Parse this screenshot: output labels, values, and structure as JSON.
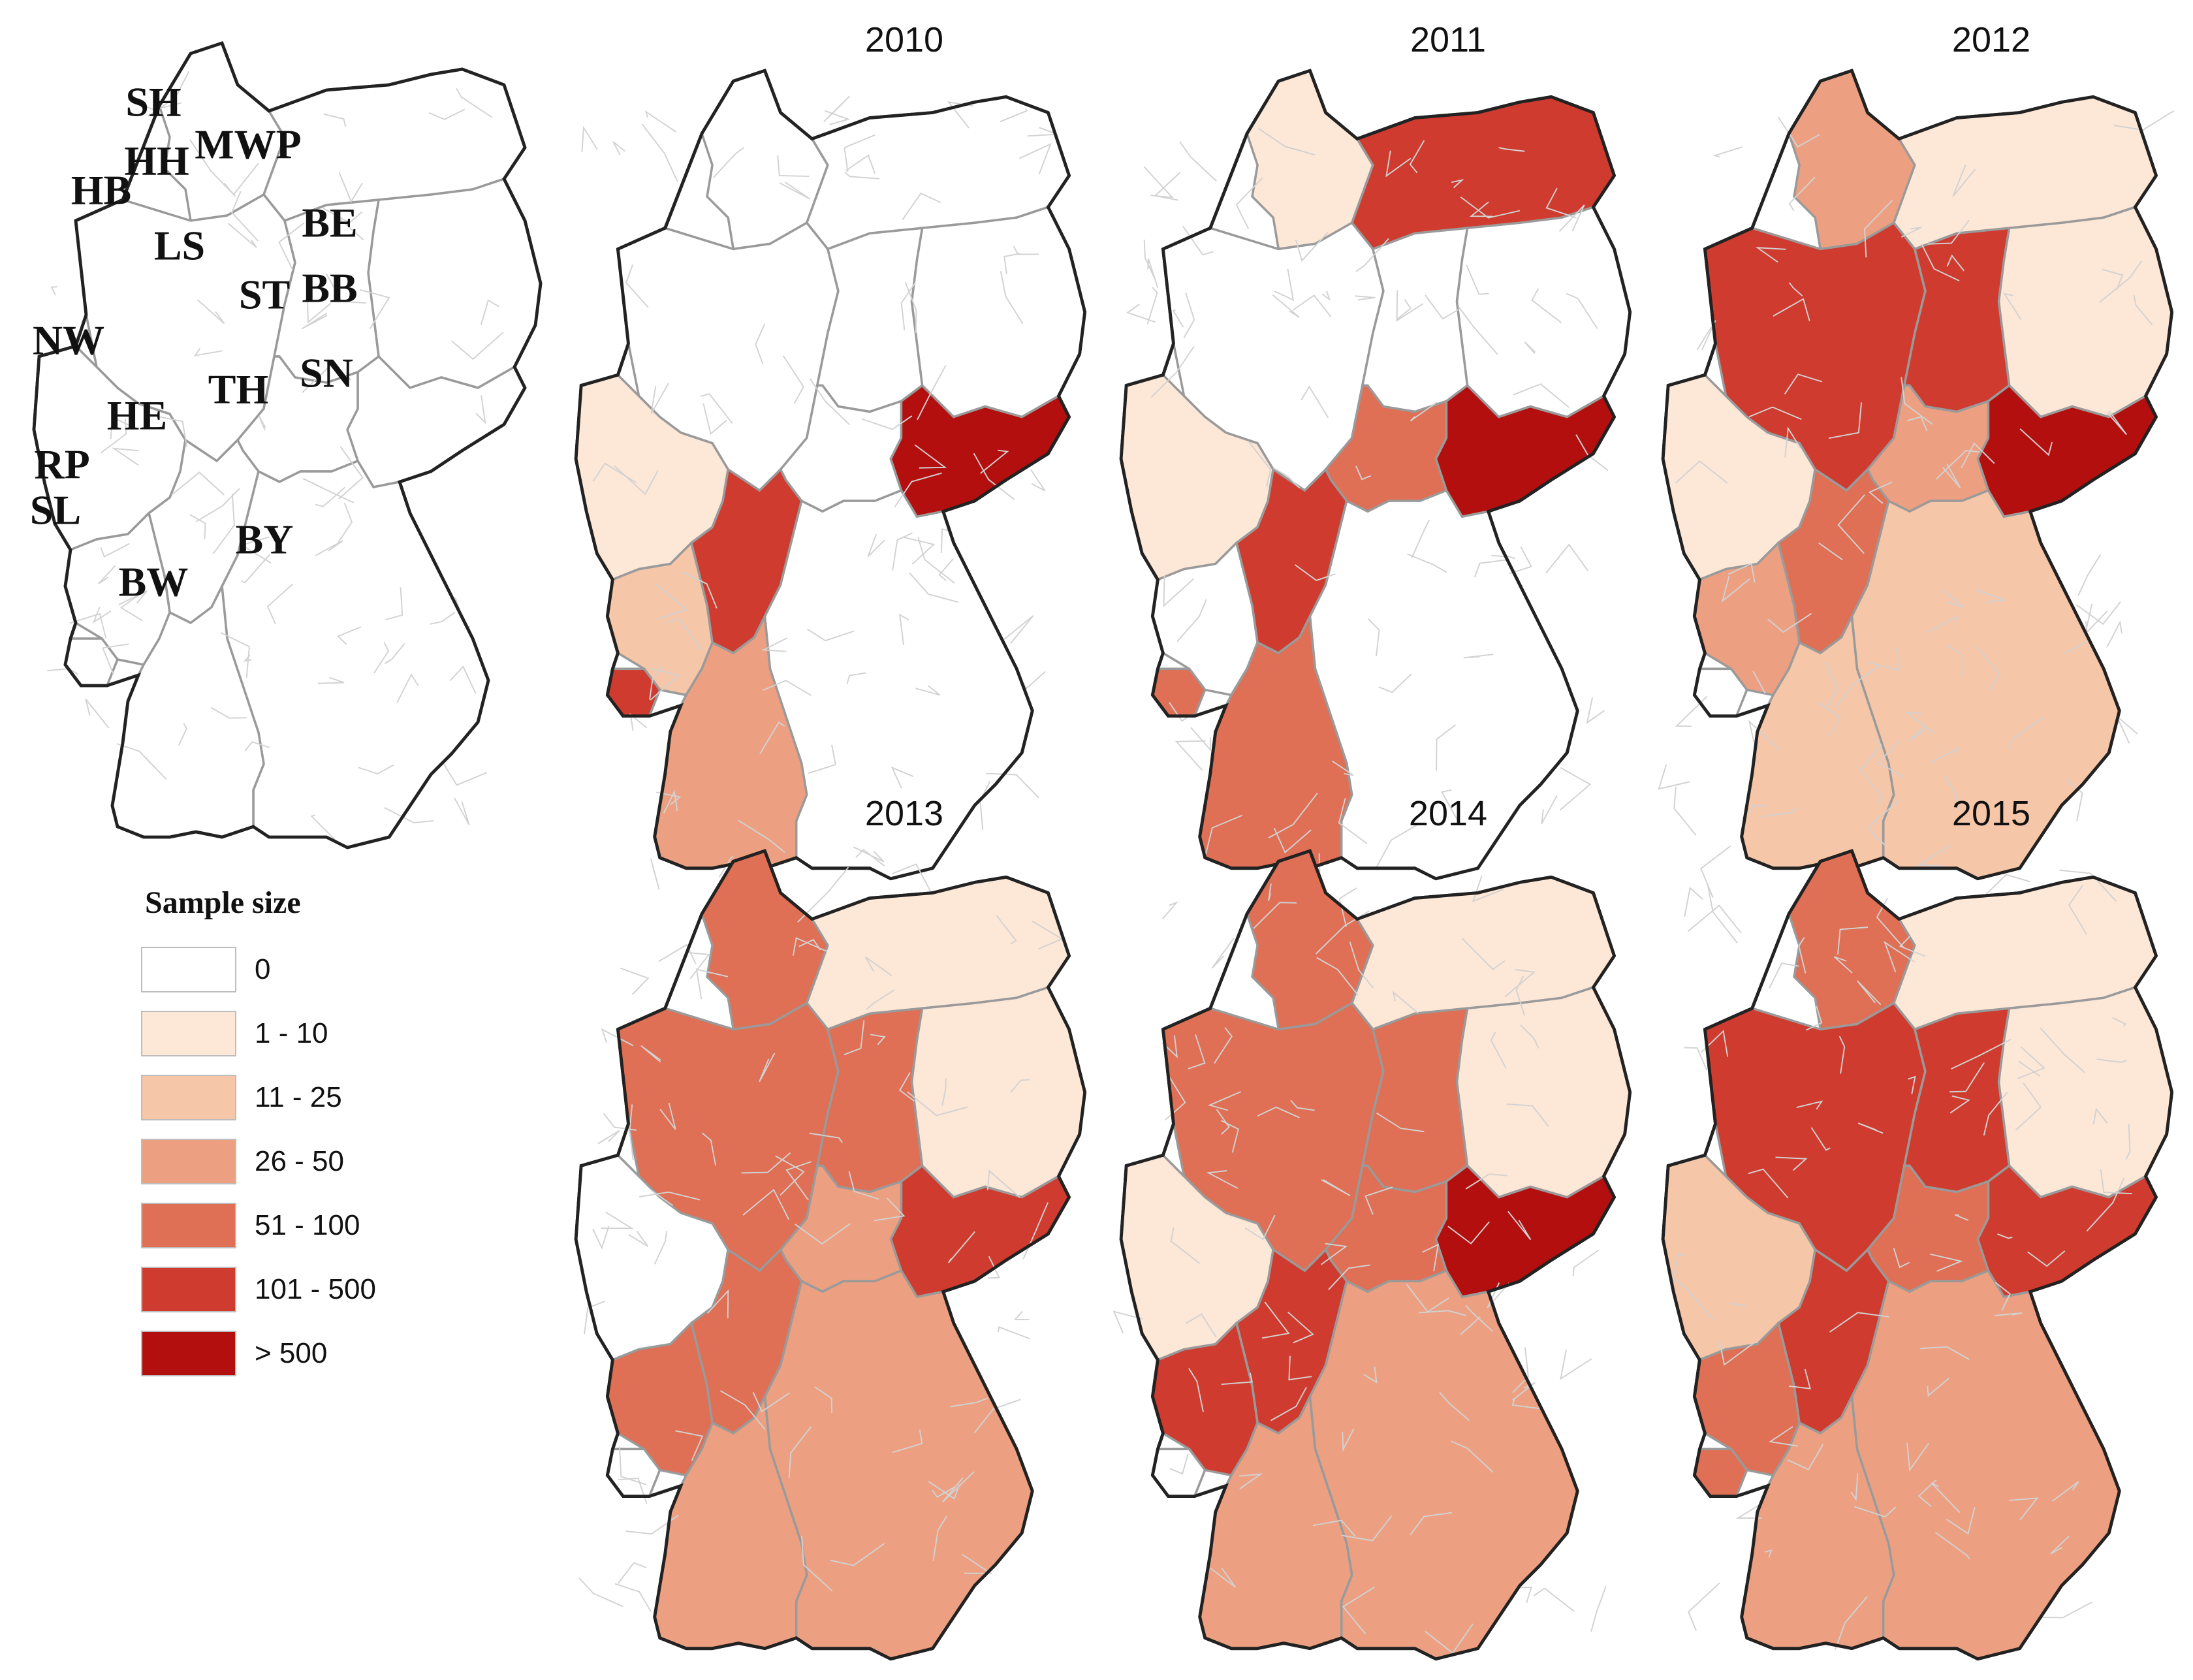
{
  "reference_map": {
    "states": [
      {
        "code": "SH"
      },
      {
        "code": "HH"
      },
      {
        "code": "MWP"
      },
      {
        "code": "HB"
      },
      {
        "code": "LS"
      },
      {
        "code": "BE"
      },
      {
        "code": "ST"
      },
      {
        "code": "BB"
      },
      {
        "code": "NW"
      },
      {
        "code": "SN"
      },
      {
        "code": "TH"
      },
      {
        "code": "HE"
      },
      {
        "code": "RP"
      },
      {
        "code": "SL"
      },
      {
        "code": "BY"
      },
      {
        "code": "BW"
      }
    ]
  },
  "maps": [
    {
      "year": "2010",
      "fill": {
        "SN": 6,
        "HE": 5,
        "RP": 2,
        "NW": 1,
        "SL": 5,
        "BW": 3
      }
    },
    {
      "year": "2011",
      "fill": {
        "MWP": 5,
        "SN": 6,
        "HE": 5,
        "TH": 4,
        "NW": 1,
        "SL": 4,
        "SH": 1,
        "BW": 4
      }
    },
    {
      "year": "2012",
      "fill": {
        "SH": 3,
        "LS": 5,
        "ST": 5,
        "SN": 6,
        "HE": 4,
        "TH": 3,
        "BY": 2,
        "BW": 2,
        "BB": 1,
        "NW": 1,
        "RP": 3,
        "MWP": 1
      }
    },
    {
      "year": "2013",
      "fill": {
        "SH": 4,
        "LS": 4,
        "ST": 4,
        "SN": 5,
        "HE": 4,
        "TH": 3,
        "BY": 3,
        "BW": 3,
        "BB": 1,
        "MWP": 1,
        "RP": 4,
        "HB": 1
      }
    },
    {
      "year": "2014",
      "fill": {
        "SH": 4,
        "LS": 4,
        "ST": 4,
        "SN": 6,
        "HE": 5,
        "TH": 4,
        "BY": 3,
        "BW": 3,
        "BB": 1,
        "MWP": 1,
        "RP": 5,
        "NW": 1
      }
    },
    {
      "year": "2015",
      "fill": {
        "SH": 4,
        "LS": 5,
        "ST": 5,
        "SN": 5,
        "HE": 5,
        "TH": 4,
        "BY": 3,
        "BW": 3,
        "BB": 1,
        "MWP": 1,
        "RP": 4,
        "NW": 2,
        "SL": 4,
        "HB": 4
      }
    }
  ],
  "legend": {
    "title": "Sample size",
    "classes": [
      {
        "label": "0",
        "color": "#ffffff"
      },
      {
        "label": "1 - 10",
        "color": "#fde7d7"
      },
      {
        "label": "11 - 25",
        "color": "#f6c6a8"
      },
      {
        "label": "26 - 50",
        "color": "#eca081"
      },
      {
        "label": "51 - 100",
        "color": "#df6f55"
      },
      {
        "label": "101 - 500",
        "color": "#cf3b2e"
      },
      {
        "label": "> 500",
        "color": "#b30f0f"
      }
    ]
  }
}
